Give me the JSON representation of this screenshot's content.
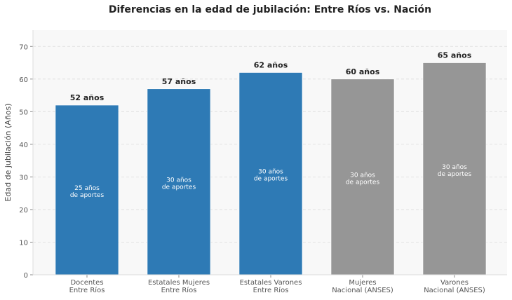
{
  "chart_data": {
    "type": "bar",
    "title": "Diferencias en la edad de jubilación: Entre Ríos vs. Nación",
    "xlabel": "",
    "ylabel": "Edad de jubilación (Años)",
    "ylim": [
      0,
      75
    ],
    "yticks": [
      0,
      10,
      20,
      30,
      40,
      50,
      60,
      70
    ],
    "grid": true,
    "categories": [
      [
        "Docentes",
        "Entre Ríos"
      ],
      [
        "Estatales Mujeres",
        "Entre Ríos"
      ],
      [
        "Estatales Varones",
        "Entre Ríos"
      ],
      [
        "Mujeres",
        "Nacional (ANSES)"
      ],
      [
        "Varones",
        "Nacional (ANSES)"
      ]
    ],
    "values": [
      52,
      57,
      62,
      60,
      65
    ],
    "value_labels": [
      "52 años",
      "57 años",
      "62 años",
      "60 años",
      "65 años"
    ],
    "inner_labels": [
      [
        "25 años",
        "de aportes"
      ],
      [
        "30 años",
        "de aportes"
      ],
      [
        "30 años",
        "de aportes"
      ],
      [
        "30 años",
        "de aportes"
      ],
      [
        "30 años",
        "de aportes"
      ]
    ],
    "colors": [
      "#2e7ab5",
      "#2e7ab5",
      "#2e7ab5",
      "#969696",
      "#969696"
    ],
    "background": "#f8f8f8"
  }
}
